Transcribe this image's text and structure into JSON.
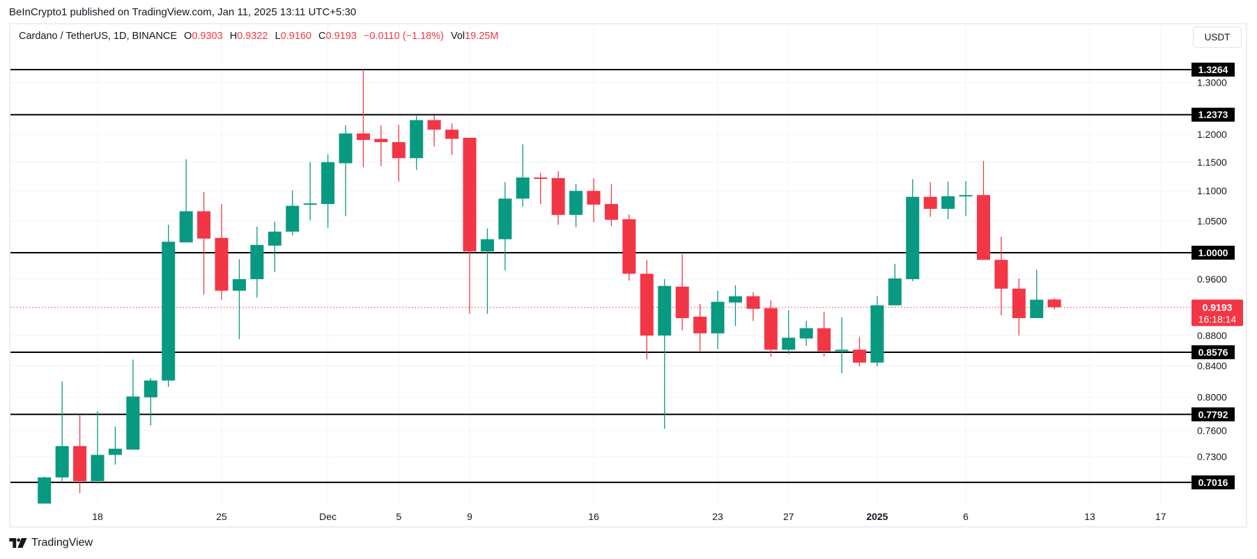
{
  "header": {
    "publisher_line": "BeInCrypto1 published on TradingView.com, Jan 11, 2025 13:11 UTC+5:30"
  },
  "legend": {
    "symbol": "Cardano / TetherUS, 1D, BINANCE",
    "open_label": "O",
    "open": "0.9303",
    "high_label": "H",
    "high": "0.9322",
    "low_label": "L",
    "low": "0.9160",
    "close_label": "C",
    "close": "0.9193",
    "change": "−0.0110 (−1.18%)",
    "volume_label": "Vol",
    "volume": "19.25M"
  },
  "currency_button": "USDT",
  "footer": {
    "brand": "TradingView"
  },
  "colors": {
    "up": "#089981",
    "down": "#f23645",
    "level_line": "#000000",
    "grid": "#f0f3fa"
  },
  "chart_data": {
    "type": "candlestick",
    "yscale": "log",
    "ylim": [
      0.68,
      1.33
    ],
    "grid": true,
    "current_price": "0.9193",
    "countdown": "16:18:14",
    "y_ticks": [
      "1.3000",
      "1.2000",
      "1.1500",
      "1.1000",
      "1.0500",
      "0.9600",
      "0.8800",
      "0.8400",
      "0.8000",
      "0.7600",
      "0.7300"
    ],
    "levels": [
      "1.3264",
      "1.2373",
      "1.0000",
      "0.8576",
      "0.7792",
      "0.7016"
    ],
    "x_ticks": [
      {
        "label": "18",
        "date": "2024-11-18"
      },
      {
        "label": "25",
        "date": "2024-11-25"
      },
      {
        "label": "Dec",
        "date": "2024-12-01"
      },
      {
        "label": "5",
        "date": "2024-12-05"
      },
      {
        "label": "9",
        "date": "2024-12-09"
      },
      {
        "label": "16",
        "date": "2024-12-16"
      },
      {
        "label": "23",
        "date": "2024-12-23"
      },
      {
        "label": "27",
        "date": "2024-12-27"
      },
      {
        "label": "2025",
        "date": "2025-01-01",
        "bold": true
      },
      {
        "label": "6",
        "date": "2025-01-06"
      },
      {
        "label": "13",
        "date": "2025-01-13"
      },
      {
        "label": "17",
        "date": "2025-01-17"
      }
    ],
    "candles": [
      {
        "date": "2024-11-15",
        "o": 0.679,
        "h": 0.708,
        "l": 0.679,
        "c": 0.707
      },
      {
        "date": "2024-11-16",
        "o": 0.707,
        "h": 0.82,
        "l": 0.703,
        "c": 0.742
      },
      {
        "date": "2024-11-17",
        "o": 0.742,
        "h": 0.779,
        "l": 0.69,
        "c": 0.703
      },
      {
        "date": "2024-11-18",
        "o": 0.703,
        "h": 0.783,
        "l": 0.7,
        "c": 0.732
      },
      {
        "date": "2024-11-19",
        "o": 0.732,
        "h": 0.765,
        "l": 0.721,
        "c": 0.739
      },
      {
        "date": "2024-11-20",
        "o": 0.738,
        "h": 0.848,
        "l": 0.738,
        "c": 0.801
      },
      {
        "date": "2024-11-21",
        "o": 0.8,
        "h": 0.824,
        "l": 0.766,
        "c": 0.821
      },
      {
        "date": "2024-11-22",
        "o": 0.821,
        "h": 1.044,
        "l": 0.813,
        "c": 1.017
      },
      {
        "date": "2024-11-23",
        "o": 1.016,
        "h": 1.155,
        "l": 1.016,
        "c": 1.066
      },
      {
        "date": "2024-11-24",
        "o": 1.066,
        "h": 1.098,
        "l": 0.937,
        "c": 1.022
      },
      {
        "date": "2024-11-25",
        "o": 1.023,
        "h": 1.078,
        "l": 0.93,
        "c": 0.943
      },
      {
        "date": "2024-11-26",
        "o": 0.943,
        "h": 0.99,
        "l": 0.875,
        "c": 0.96
      },
      {
        "date": "2024-11-27",
        "o": 0.96,
        "h": 1.041,
        "l": 0.933,
        "c": 1.012
      },
      {
        "date": "2024-11-28",
        "o": 1.011,
        "h": 1.049,
        "l": 0.971,
        "c": 1.033
      },
      {
        "date": "2024-11-29",
        "o": 1.033,
        "h": 1.101,
        "l": 1.027,
        "c": 1.075
      },
      {
        "date": "2024-11-30",
        "o": 1.077,
        "h": 1.15,
        "l": 1.051,
        "c": 1.079
      },
      {
        "date": "2024-12-01",
        "o": 1.078,
        "h": 1.164,
        "l": 1.039,
        "c": 1.15
      },
      {
        "date": "2024-12-02",
        "o": 1.148,
        "h": 1.217,
        "l": 1.058,
        "c": 1.202
      },
      {
        "date": "2024-12-03",
        "o": 1.202,
        "h": 1.327,
        "l": 1.141,
        "c": 1.19
      },
      {
        "date": "2024-12-04",
        "o": 1.192,
        "h": 1.217,
        "l": 1.143,
        "c": 1.186
      },
      {
        "date": "2024-12-05",
        "o": 1.186,
        "h": 1.218,
        "l": 1.116,
        "c": 1.157
      },
      {
        "date": "2024-12-06",
        "o": 1.157,
        "h": 1.235,
        "l": 1.136,
        "c": 1.227
      },
      {
        "date": "2024-12-07",
        "o": 1.227,
        "h": 1.236,
        "l": 1.178,
        "c": 1.209
      },
      {
        "date": "2024-12-08",
        "o": 1.209,
        "h": 1.221,
        "l": 1.163,
        "c": 1.192
      },
      {
        "date": "2024-12-09",
        "o": 1.194,
        "h": 1.194,
        "l": 0.91,
        "c": 1.002
      },
      {
        "date": "2024-12-10",
        "o": 1.002,
        "h": 1.038,
        "l": 0.91,
        "c": 1.021
      },
      {
        "date": "2024-12-11",
        "o": 1.021,
        "h": 1.115,
        "l": 0.973,
        "c": 1.087
      },
      {
        "date": "2024-12-12",
        "o": 1.087,
        "h": 1.182,
        "l": 1.074,
        "c": 1.123
      },
      {
        "date": "2024-12-13",
        "o": 1.123,
        "h": 1.131,
        "l": 1.078,
        "c": 1.121
      },
      {
        "date": "2024-12-14",
        "o": 1.122,
        "h": 1.134,
        "l": 1.044,
        "c": 1.06
      },
      {
        "date": "2024-12-15",
        "o": 1.06,
        "h": 1.112,
        "l": 1.04,
        "c": 1.1
      },
      {
        "date": "2024-12-16",
        "o": 1.1,
        "h": 1.122,
        "l": 1.048,
        "c": 1.077
      },
      {
        "date": "2024-12-17",
        "o": 1.078,
        "h": 1.112,
        "l": 1.042,
        "c": 1.052
      },
      {
        "date": "2024-12-18",
        "o": 1.053,
        "h": 1.061,
        "l": 0.958,
        "c": 0.968
      },
      {
        "date": "2024-12-19",
        "o": 0.968,
        "h": 0.989,
        "l": 0.848,
        "c": 0.88
      },
      {
        "date": "2024-12-20",
        "o": 0.88,
        "h": 0.96,
        "l": 0.762,
        "c": 0.95
      },
      {
        "date": "2024-12-21",
        "o": 0.949,
        "h": 0.998,
        "l": 0.887,
        "c": 0.904
      },
      {
        "date": "2024-12-22",
        "o": 0.906,
        "h": 0.924,
        "l": 0.859,
        "c": 0.883
      },
      {
        "date": "2024-12-23",
        "o": 0.883,
        "h": 0.943,
        "l": 0.862,
        "c": 0.927
      },
      {
        "date": "2024-12-24",
        "o": 0.926,
        "h": 0.951,
        "l": 0.893,
        "c": 0.935
      },
      {
        "date": "2024-12-25",
        "o": 0.935,
        "h": 0.941,
        "l": 0.9,
        "c": 0.917
      },
      {
        "date": "2024-12-26",
        "o": 0.918,
        "h": 0.929,
        "l": 0.852,
        "c": 0.861
      },
      {
        "date": "2024-12-27",
        "o": 0.861,
        "h": 0.915,
        "l": 0.855,
        "c": 0.877
      },
      {
        "date": "2024-12-28",
        "o": 0.876,
        "h": 0.9,
        "l": 0.866,
        "c": 0.89
      },
      {
        "date": "2024-12-29",
        "o": 0.89,
        "h": 0.913,
        "l": 0.852,
        "c": 0.859
      },
      {
        "date": "2024-12-30",
        "o": 0.859,
        "h": 0.905,
        "l": 0.83,
        "c": 0.861
      },
      {
        "date": "2024-12-31",
        "o": 0.861,
        "h": 0.878,
        "l": 0.839,
        "c": 0.844
      },
      {
        "date": "2025-01-01",
        "o": 0.844,
        "h": 0.935,
        "l": 0.839,
        "c": 0.922
      },
      {
        "date": "2025-01-02",
        "o": 0.922,
        "h": 0.983,
        "l": 0.922,
        "c": 0.961
      },
      {
        "date": "2025-01-03",
        "o": 0.96,
        "h": 1.12,
        "l": 0.957,
        "c": 1.09
      },
      {
        "date": "2025-01-04",
        "o": 1.09,
        "h": 1.115,
        "l": 1.057,
        "c": 1.07
      },
      {
        "date": "2025-01-05",
        "o": 1.07,
        "h": 1.116,
        "l": 1.053,
        "c": 1.091
      },
      {
        "date": "2025-01-06",
        "o": 1.091,
        "h": 1.117,
        "l": 1.058,
        "c": 1.093
      },
      {
        "date": "2025-01-07",
        "o": 1.093,
        "h": 1.152,
        "l": 0.989,
        "c": 0.989
      },
      {
        "date": "2025-01-08",
        "o": 0.989,
        "h": 1.025,
        "l": 0.908,
        "c": 0.946
      },
      {
        "date": "2025-01-09",
        "o": 0.946,
        "h": 0.961,
        "l": 0.88,
        "c": 0.904
      },
      {
        "date": "2025-01-10",
        "o": 0.904,
        "h": 0.974,
        "l": 0.904,
        "c": 0.93
      },
      {
        "date": "2025-01-11",
        "o": 0.9303,
        "h": 0.9322,
        "l": 0.916,
        "c": 0.9193
      }
    ]
  }
}
